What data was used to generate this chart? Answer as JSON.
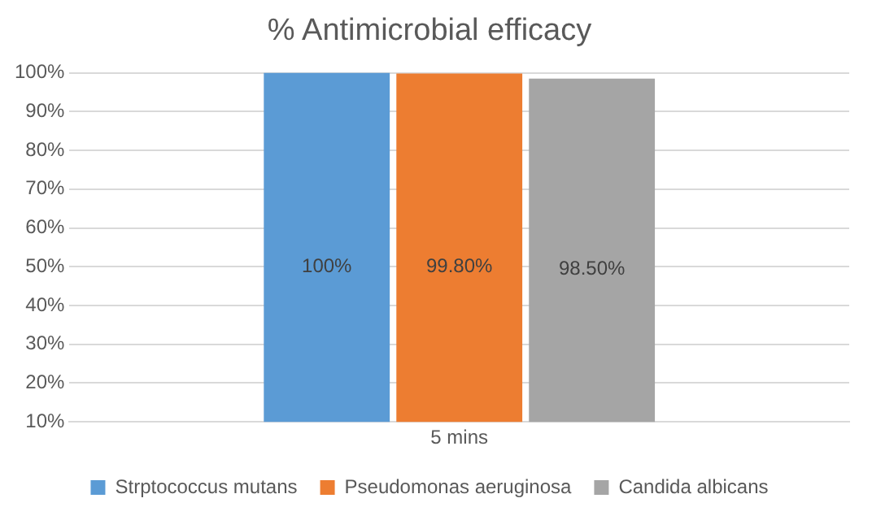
{
  "chart_data": {
    "type": "bar",
    "title": "% Antimicrobial efficacy",
    "categories": [
      "5 mins"
    ],
    "series": [
      {
        "name": "Strptococcus mutans",
        "color": "#5b9bd5",
        "values": [
          100
        ],
        "value_labels": [
          "100%"
        ]
      },
      {
        "name": "Pseudomonas aeruginosa",
        "color": "#ed7d31",
        "values": [
          99.8
        ],
        "value_labels": [
          "99.80%"
        ]
      },
      {
        "name": "Candida albicans",
        "color": "#a5a5a5",
        "values": [
          98.5
        ],
        "value_labels": [
          "98.50%"
        ]
      }
    ],
    "ylim": [
      10,
      100
    ],
    "yticks": [
      {
        "value": 10,
        "label": "10%"
      },
      {
        "value": 20,
        "label": "20%"
      },
      {
        "value": 30,
        "label": "30%"
      },
      {
        "value": 40,
        "label": "40%"
      },
      {
        "value": 50,
        "label": "50%"
      },
      {
        "value": 60,
        "label": "60%"
      },
      {
        "value": 70,
        "label": "70%"
      },
      {
        "value": 80,
        "label": "80%"
      },
      {
        "value": 90,
        "label": "90%"
      },
      {
        "value": 100,
        "label": "100%"
      }
    ],
    "grid": "y",
    "legend": "bottom"
  }
}
